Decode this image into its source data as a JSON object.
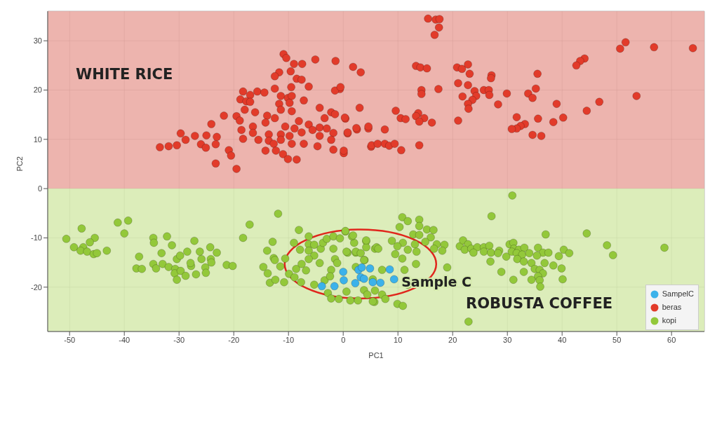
{
  "chart_data": {
    "type": "scatter",
    "xlabel": "PC1",
    "ylabel": "PC2",
    "xlim": [
      -54,
      66
    ],
    "ylim": [
      -29,
      36
    ],
    "xticks": [
      -50,
      -40,
      -30,
      -20,
      -10,
      0,
      10,
      20,
      30,
      40,
      50,
      60
    ],
    "yticks": [
      -20,
      -10,
      0,
      10,
      20,
      30
    ],
    "grid": true,
    "legend": "bottom right",
    "marker": "circle",
    "bands": [
      {
        "axis": "y",
        "from": 0,
        "to": 36,
        "label": "WHITE RICE",
        "color": "#eaa7a0"
      },
      {
        "axis": "y",
        "from": -29,
        "to": 0,
        "label": "ROBUSTA COFFEE",
        "color": "#d6eaae"
      }
    ],
    "annotations": [
      {
        "text": "Sample C",
        "x": 10,
        "y": -19
      }
    ],
    "series": [
      {
        "name": "SampelC",
        "color": "#3cb2ea",
        "x": [
          -3.9,
          -1.6,
          0.1,
          0,
          2.2,
          2.8,
          3.2,
          3.4,
          3.8,
          4.9,
          5.4,
          6.8,
          8.5,
          9.3
        ],
        "values": [
          -19.8,
          -19.8,
          -18.6,
          -16.9,
          -19.2,
          -16.5,
          -18.0,
          -16.0,
          -18.3,
          -16.2,
          -19.0,
          -19.1,
          -16.4,
          -18.4
        ]
      },
      {
        "name": "beras",
        "color": "#e23b2a",
        "x": [
          -10.9,
          -10.4,
          -9.0,
          -7.5,
          -5.1,
          -1.4,
          1.8,
          3.2,
          -11.7,
          -12.5,
          -9.6,
          -8.5,
          -7.6,
          -6.3,
          -0.6,
          -1.5,
          -18.3,
          -15.7,
          -14.4,
          -12.5,
          -9.5,
          -17.0,
          -11.4,
          -10.1,
          -9.4,
          -18.8,
          -17.7,
          -17.0,
          -7.2,
          -11.7,
          -9.8,
          -4.3,
          3.0,
          -18.0,
          -11.4,
          -9.4,
          -16.1,
          -21.8,
          -19.5,
          -2.2,
          -1.5,
          -3.4,
          0.4,
          -13.9,
          -12.5,
          -24.1,
          -18.9,
          -14.2,
          -8.1,
          -6.3,
          -4.3,
          -3.0,
          -10.6,
          -8.9,
          -16.5,
          -18.6,
          2.5,
          4.6,
          -7.6,
          -5.6,
          -1.8,
          0.8,
          -16.5,
          -13.6,
          -11.4,
          -9.8,
          -4.3,
          -29.7,
          -27.1,
          -25.0,
          -23.1,
          -28.8,
          -26.0,
          -23.3,
          -18.3,
          -15.5,
          -13.6,
          -11.4,
          -9.4,
          -7.2,
          -2.2,
          -33.5,
          -31.9,
          -30.4,
          -25.1,
          -12.7,
          -4.7,
          -1.8,
          0.1,
          5.1,
          -20.9,
          -20.5,
          -14.2,
          -12.3,
          -11.0,
          -10.1,
          -8.5,
          -23.3,
          -19.5,
          15.5,
          16.9,
          17.6,
          17.5,
          16.7,
          51.6,
          50.6,
          56.8,
          63.9,
          44.1,
          43.3,
          42.6,
          13.3,
          14.1,
          15.3,
          20.8,
          21.7,
          22.8,
          23.1,
          27.1,
          27.0,
          35.5,
          -0.5,
          21.0,
          22.8,
          14.3,
          14.3,
          17.4,
          24.0,
          24.3,
          21.8,
          25.7,
          26.6,
          26.7,
          29.9,
          33.8,
          34.6,
          35.2,
          23.6,
          22.8,
          22.9,
          28.3,
          39.0,
          46.8,
          44.5,
          53.6,
          9.6,
          13.7,
          13.3,
          14.8,
          10.5,
          11.4,
          13.9,
          16.2,
          21.0,
          31.7,
          35.6,
          38.4,
          40.2,
          33.2,
          32.4,
          31.7,
          30.8,
          0.3,
          4.6,
          2.4,
          0.8,
          7.6,
          5.2,
          6.3,
          7.6,
          8.4,
          9.4,
          10.6,
          13.9,
          0.1,
          34.6,
          36.2
        ],
        "values": [
          27.3,
          26.5,
          25.3,
          25.3,
          26.2,
          25.9,
          24.7,
          23.6,
          23.6,
          22.8,
          23.8,
          22.3,
          22.1,
          20.7,
          20.2,
          19.9,
          19.7,
          19.7,
          19.5,
          20.3,
          20.6,
          19.0,
          18.8,
          18.4,
          18.8,
          18.1,
          17.7,
          17.6,
          17.9,
          17.2,
          17.4,
          16.4,
          16.4,
          16.0,
          16.0,
          15.7,
          15.5,
          14.8,
          14.7,
          15.5,
          15.1,
          14.3,
          14.2,
          14.8,
          14.3,
          13.1,
          13.8,
          13.4,
          13.7,
          13.0,
          12.4,
          12.2,
          12.6,
          12.2,
          12.6,
          11.9,
          12.0,
          12.2,
          11.4,
          11.9,
          11.3,
          11.2,
          11.3,
          11.0,
          11.0,
          10.7,
          10.7,
          11.2,
          10.7,
          10.8,
          10.5,
          9.9,
          9.0,
          9.0,
          10.1,
          9.9,
          9.7,
          9.9,
          9.1,
          9.1,
          9.9,
          8.4,
          8.6,
          8.8,
          8.3,
          9.1,
          8.6,
          7.9,
          7.2,
          8.5,
          7.8,
          6.7,
          7.7,
          7.7,
          7.0,
          6.0,
          5.9,
          5.1,
          4.0,
          34.5,
          34.3,
          34.4,
          32.7,
          31.2,
          29.7,
          28.4,
          28.7,
          28.5,
          26.4,
          25.9,
          25.0,
          24.9,
          24.6,
          24.4,
          24.6,
          24.3,
          25.2,
          23.3,
          23.0,
          22.4,
          23.3,
          20.6,
          21.4,
          21.0,
          20.0,
          19.2,
          20.2,
          19.8,
          18.8,
          18.7,
          20.0,
          20.0,
          19.0,
          19.3,
          19.3,
          18.4,
          20.3,
          18.0,
          17.2,
          16.2,
          17.1,
          17.2,
          17.6,
          15.8,
          18.8,
          15.8,
          15.3,
          14.7,
          14.3,
          14.3,
          14.1,
          13.6,
          13.4,
          13.8,
          14.5,
          14.2,
          13.5,
          14.4,
          13.1,
          12.7,
          12.2,
          12.1,
          14.4,
          12.6,
          12.3,
          11.4,
          12.0,
          8.8,
          9.1,
          9.1,
          8.7,
          9.1,
          7.8,
          8.8,
          7.7,
          10.9,
          10.7
        ]
      },
      {
        "name": "kopi",
        "color": "#93c83a",
        "x": [
          -50.6,
          -47.8,
          -41.2,
          -39.3,
          -40.0,
          -45.4,
          -46.3,
          -49.2,
          -47.5,
          -48.0,
          -46.8,
          -45.6,
          -45.0,
          -43.2,
          -34.7,
          -34.6,
          -32.2,
          -31.3,
          -27.2,
          -33.2,
          -37.3,
          -37.8,
          -36.8,
          -34.7,
          -34.2,
          -33.0,
          -31.9,
          -30.4,
          -29.8,
          -28.5,
          -26.2,
          -24.3,
          -23.1,
          -24.2,
          -24.1,
          -25.9,
          -30.7,
          -30.8,
          -29.7,
          -28.8,
          -27.8,
          -26.9,
          -25.2,
          -25.1,
          -30.4,
          -27.9,
          -21.3,
          -20.2,
          -11.9,
          -17.1,
          -18.3,
          -12.9,
          -13.9,
          -8.1,
          -9.0,
          -6.3,
          -10.6,
          -12.7,
          -12.5,
          -14.6,
          -13.8,
          -13.4,
          -12.4,
          -10.8,
          -11.5,
          -9.9,
          -8.9,
          -8.6,
          -7.7,
          -7.6,
          -6.8,
          -7.9,
          -6.3,
          -5.3,
          -6.3,
          -5.3,
          -6.3,
          -4.1,
          -3.7,
          -3.0,
          -1.8,
          -0.6,
          0.4,
          -1.8,
          -1.5,
          -1.1,
          -2.2,
          -4.3,
          -3.4,
          -2.4,
          -5.3,
          -2.8,
          -2.2,
          -0.8,
          0.6,
          0.8,
          2.3,
          2.0,
          1.6,
          1.3,
          2.7,
          2.3,
          4.2,
          4.2,
          3.9,
          3.8,
          5.4,
          5.8,
          4.4,
          5.7,
          30.9,
          27.1,
          10.8,
          11.8,
          13.9,
          13.9,
          10.3,
          15.3,
          16.5,
          0.4,
          1.8,
          4.2,
          8.9,
          12.8,
          13.9,
          16.0,
          10.9,
          9.9,
          13.1,
          15.0,
          17.1,
          18.5,
          16.6,
          18.1,
          11.8,
          13.4,
          6.1,
          6.4,
          2.3,
          0.6,
          9.5,
          3.2,
          10.8,
          3.8,
          13.3,
          11.2,
          7.1,
          19.0,
          11.8,
          5.8,
          7.1,
          7.7,
          5.4,
          9.9,
          10.9,
          22.9,
          21.3,
          21.9,
          22.8,
          22.2,
          23.4,
          24.5,
          23.8,
          25.7,
          25.7,
          26.7,
          27.0,
          28.5,
          28.3,
          29.8,
          26.9,
          28.9,
          30.4,
          31.1,
          31.2,
          30.8,
          32.1,
          33.1,
          31.7,
          32.7,
          34.0,
          31.8,
          33.0,
          34.4,
          35.6,
          36.5,
          37.5,
          35.4,
          36.8,
          35.0,
          35.9,
          36.5,
          35.6,
          33.0,
          31.1,
          34.4,
          35.9,
          36.0,
          37.0,
          38.4,
          39.4,
          39.9,
          40.1,
          40.3,
          41.3,
          44.5,
          48.2,
          49.3,
          58.7
        ],
        "values": [
          -10.2,
          -8.1,
          -6.9,
          -6.5,
          -9.1,
          -10.0,
          -10.9,
          -11.9,
          -11.9,
          -12.6,
          -12.8,
          -13.3,
          -13.1,
          -12.6,
          -10.0,
          -11.0,
          -9.7,
          -11.5,
          -10.6,
          -13.1,
          -13.8,
          -16.2,
          -16.3,
          -15.3,
          -16.2,
          -15.3,
          -15.9,
          -14.3,
          -13.6,
          -12.8,
          -12.8,
          -11.9,
          -13.0,
          -14.3,
          -15.0,
          -14.3,
          -16.3,
          -17.2,
          -16.7,
          -17.7,
          -15.7,
          -17.4,
          -16.0,
          -17.1,
          -18.5,
          -15.1,
          -15.5,
          -15.7,
          -5.1,
          -7.3,
          -10.0,
          -10.8,
          -12.6,
          -8.4,
          -11.0,
          -9.7,
          -14.2,
          -14.1,
          -14.5,
          -15.9,
          -17.2,
          -19.1,
          -18.5,
          -19.0,
          -15.8,
          -17.3,
          -18.0,
          -16.3,
          -19.0,
          -15.3,
          -16.6,
          -12.4,
          -11.3,
          -11.4,
          -12.6,
          -13.6,
          -14.3,
          -12.2,
          -11.0,
          -10.2,
          -9.7,
          -10.1,
          -8.7,
          -12.2,
          -14.3,
          -15.1,
          -16.5,
          -15.1,
          -18.6,
          -17.8,
          -19.5,
          -21.2,
          -22.3,
          -22.4,
          -20.9,
          -13.0,
          -13.0,
          -11.0,
          -9.7,
          -22.7,
          -22.7,
          -15.9,
          -10.7,
          -11.9,
          -14.5,
          -20.6,
          -18.4,
          -12.2,
          -21.5,
          -23.0,
          -1.4,
          -5.6,
          -5.8,
          -6.6,
          -6.3,
          -7.6,
          -7.8,
          -8.3,
          -8.4,
          -8.6,
          -9.5,
          -10.5,
          -10.6,
          -9.3,
          -9.4,
          -9.9,
          -11.0,
          -11.7,
          -11.3,
          -10.8,
          -11.3,
          -11.4,
          -12.2,
          -12.6,
          -12.4,
          -12.8,
          -11.9,
          -12.2,
          -12.8,
          -12.8,
          -13.3,
          -13.1,
          -14.2,
          -14.5,
          -15.3,
          -16.5,
          -16.5,
          -16.0,
          -19.5,
          -20.7,
          -21.5,
          -22.4,
          -22.9,
          -23.4,
          -23.8,
          -27.0,
          -11.7,
          -10.5,
          -11.3,
          -12.4,
          -12.2,
          -11.9,
          -13.0,
          -11.9,
          -12.8,
          -11.6,
          -13.0,
          -12.6,
          -13.1,
          -13.8,
          -14.8,
          -16.9,
          -11.3,
          -11.0,
          -12.2,
          -12.8,
          -12.4,
          -12.0,
          -13.1,
          -13.4,
          -13.1,
          -14.3,
          -14.8,
          -15.1,
          -12.0,
          -13.0,
          -13.0,
          -13.6,
          -15.1,
          -16.3,
          -16.5,
          -17.2,
          -17.8,
          -16.9,
          -18.5,
          -18.5,
          -18.6,
          -19.9,
          -9.3,
          -15.6,
          -13.7,
          -16.2,
          -18.4,
          -12.4,
          -13.1,
          -9.1,
          -11.5,
          -13.5,
          -12.0
        ]
      }
    ]
  }
}
